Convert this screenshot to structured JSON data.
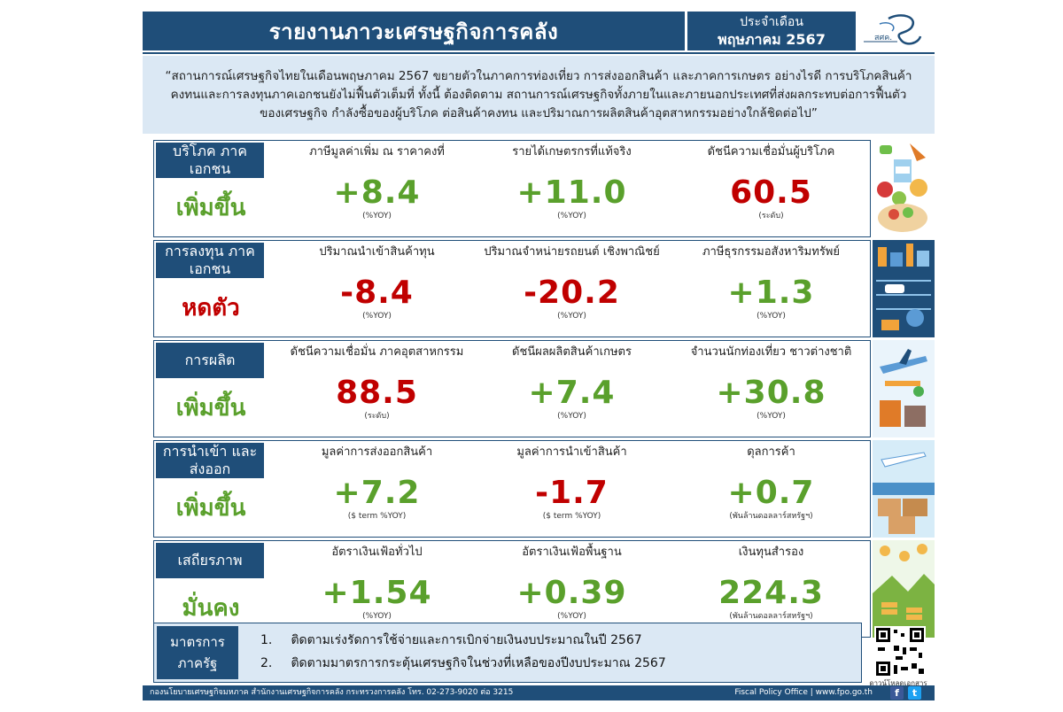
{
  "header": {
    "title": "รายงานภาวะเศรษฐกิจการคลัง",
    "date_line1": "ประจำเดือน",
    "date_line2": "พฤษภาคม 2567",
    "logo_text": "สศค."
  },
  "summary": "“สถานการณ์เศรษฐกิจไทยในเดือนพฤษภาคม 2567 ขยายตัวในภาคการท่องเที่ยว การส่งออกสินค้า และภาคการเกษตร อย่างไรดี การบริโภคสินค้าคงทนและการลงทุนภาคเอกชนยังไม่ฟื้นตัวเต็มที่ ทั้งนี้ ต้องติดตาม สถานการณ์เศรษฐกิจทั้งภายในและภายนอกประเทศที่ส่งผลกระทบต่อการฟื้นตัวของเศรษฐกิจ กำลังซื้อของผู้บริโภค ต่อสินค้าคงทน และปริมาณการผลิตสินค้าอุตสาหกรรมอย่างใกล้ชิดต่อไป”",
  "colors": {
    "navy": "#1f4e79",
    "green": "#5aa02c",
    "red": "#c00000",
    "light_blue": "#dbe8f4"
  },
  "sections": [
    {
      "label": "บริโภค ภาคเอกชน",
      "trend": "เพิ่มขึ้น",
      "trend_color": "#5aa02c",
      "metrics": [
        {
          "name": "ภาษีมูลค่าเพิ่ม ณ ราคาคงที่",
          "value": "+8.4",
          "unit": "(%YOY)",
          "color": "#5aa02c"
        },
        {
          "name": "รายได้เกษตรกรที่แท้จริง",
          "value": "+11.0",
          "unit": "(%YOY)",
          "color": "#5aa02c"
        },
        {
          "name": "ดัชนีความเชื่อมั่นผู้บริโภค",
          "value": "60.5",
          "unit": "(ระดับ)",
          "color": "#c00000"
        }
      ]
    },
    {
      "label": "การลงทุน ภาคเอกชน",
      "trend": "หดตัว",
      "trend_color": "#c00000",
      "metrics": [
        {
          "name": "ปริมาณนำเข้าสินค้าทุน",
          "value": "-8.4",
          "unit": "(%YOY)",
          "color": "#c00000"
        },
        {
          "name": "ปริมาณจำหน่ายรถยนต์ เชิงพาณิชย์",
          "value": "-20.2",
          "unit": "(%YOY)",
          "color": "#c00000"
        },
        {
          "name": "ภาษีธุรกรรมอสังหาริมทรัพย์",
          "value": "+1.3",
          "unit": "(%YOY)",
          "color": "#5aa02c"
        }
      ]
    },
    {
      "label": "การผลิต",
      "trend": "เพิ่มขึ้น",
      "trend_color": "#5aa02c",
      "metrics": [
        {
          "name": "ดัชนีความเชื่อมั่น ภาคอุตสาหกรรม",
          "value": "88.5",
          "unit": "(ระดับ)",
          "color": "#c00000"
        },
        {
          "name": "ดัชนีผลผลิตสินค้าเกษตร",
          "value": "+7.4",
          "unit": "(%YOY)",
          "color": "#5aa02c"
        },
        {
          "name": "จำนวนนักท่องเที่ยว ชาวต่างชาติ",
          "value": "+30.8",
          "unit": "(%YOY)",
          "color": "#5aa02c"
        }
      ]
    },
    {
      "label": "การนำเข้า และส่งออก",
      "trend": "เพิ่มขึ้น",
      "trend_color": "#5aa02c",
      "metrics": [
        {
          "name": "มูลค่าการส่งออกสินค้า",
          "value": "+7.2",
          "unit": "($ term %YOY)",
          "color": "#5aa02c"
        },
        {
          "name": "มูลค่าการนำเข้าสินค้า",
          "value": "-1.7",
          "unit": "($ term %YOY)",
          "color": "#c00000"
        },
        {
          "name": "ดุลการค้า",
          "value": "+0.7",
          "unit": "(พันล้านดอลลาร์สหรัฐฯ)",
          "color": "#5aa02c"
        }
      ]
    },
    {
      "label": "เสถียรภาพ",
      "trend": "มั่นคง",
      "trend_color": "#5aa02c",
      "metrics": [
        {
          "name": "อัตราเงินเฟ้อทั่วไป",
          "value": "+1.54",
          "unit": "(%YOY)",
          "color": "#5aa02c"
        },
        {
          "name": "อัตราเงินเฟ้อพื้นฐาน",
          "value": "+0.39",
          "unit": "(%YOY)",
          "color": "#5aa02c"
        },
        {
          "name": "เงินทุนสำรอง",
          "value": "224.3",
          "unit": "(พันล้านดอลลาร์สหรัฐฯ)",
          "color": "#5aa02c"
        }
      ]
    }
  ],
  "measures": {
    "label": "มาตรการ ภาครัฐ",
    "items": [
      {
        "num": "1.",
        "text": "ติดตามเร่งรัดการใช้จ่ายและการเบิกจ่ายเงินงบประมาณในปี 2567"
      },
      {
        "num": "2.",
        "text": "ติดตามมาตรการกระตุ้นเศรษฐกิจในช่วงที่เหลือของปีงบประมาณ 2567"
      }
    ],
    "qr_caption": "ดาวน์โหลดเอกสาร"
  },
  "footer": {
    "left": "กองนโยบายเศรษฐกิจมหภาค สำนักงานเศรษฐกิจการคลัง กระทรวงการคลัง โทร. 02-273-9020 ต่อ 3215",
    "right": "Fiscal Policy Office | www.fpo.go.th",
    "icons": [
      "facebook-icon",
      "twitter-icon"
    ]
  }
}
